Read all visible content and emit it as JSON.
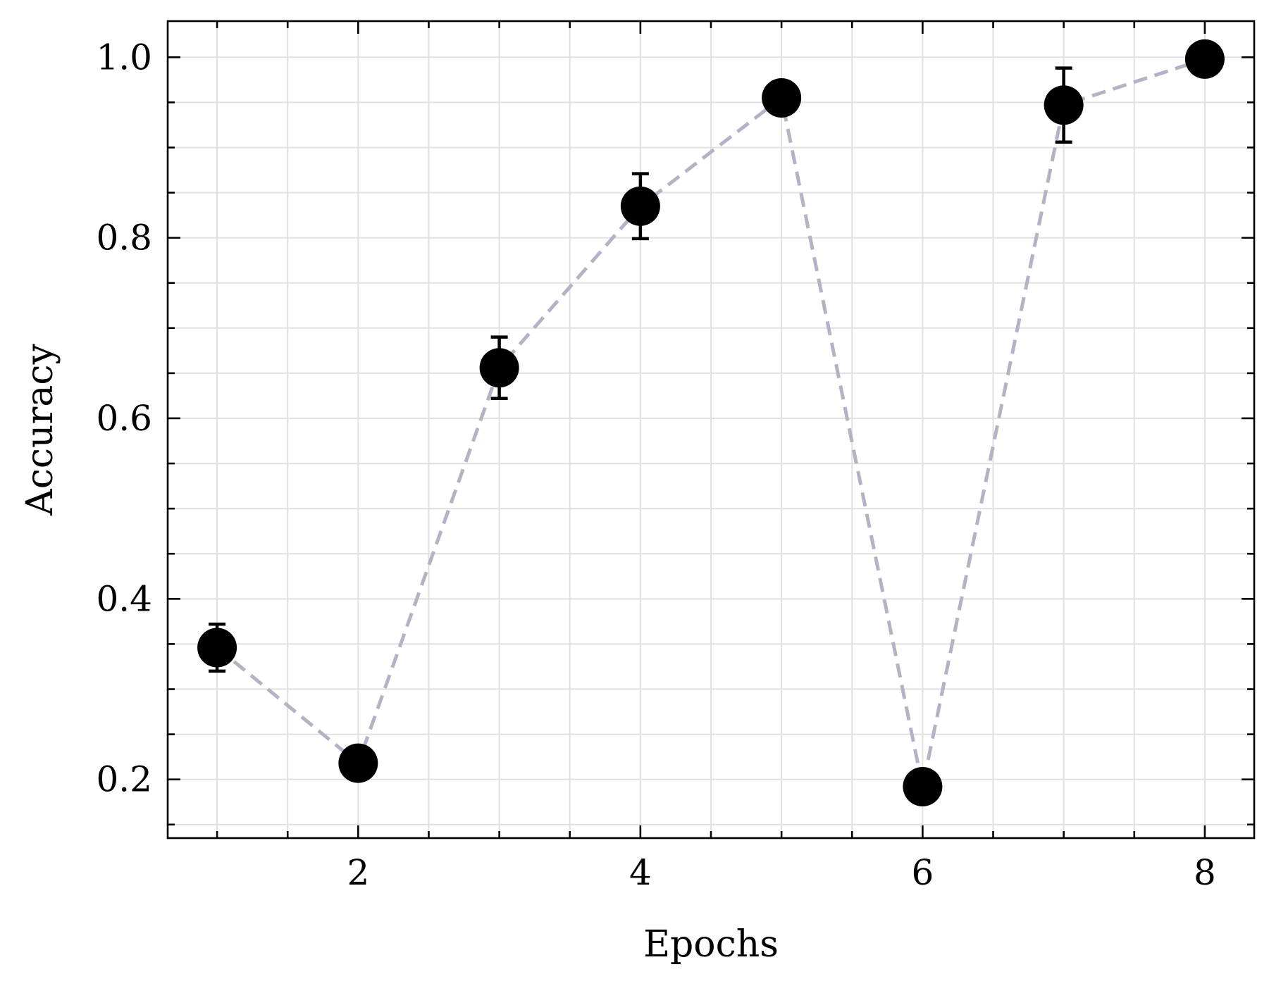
{
  "chart_data": {
    "type": "scatter",
    "title": "",
    "xlabel": "Epochs",
    "ylabel": "Accuracy",
    "xlim": [
      0.65,
      8.35
    ],
    "ylim": [
      0.135,
      1.04
    ],
    "xticks": [
      2,
      4,
      6,
      8
    ],
    "xtick_labels": [
      "2",
      "4",
      "6",
      "8"
    ],
    "xticks_minor": [
      1,
      1.5,
      2.5,
      3,
      3.5,
      4.5,
      5,
      5.5,
      6.5,
      7,
      7.5
    ],
    "yticks": [
      0.2,
      0.4,
      0.6,
      0.8,
      1.0
    ],
    "ytick_labels": [
      "0.2",
      "0.4",
      "0.6",
      "0.8",
      "1.0"
    ],
    "yticks_minor": [
      0.15,
      0.25,
      0.3,
      0.35,
      0.45,
      0.5,
      0.55,
      0.65,
      0.7,
      0.75,
      0.85,
      0.9,
      0.95
    ],
    "grid": true,
    "connector_style": "dashed",
    "series": [
      {
        "x": [
          1,
          2,
          3,
          4,
          5,
          6,
          7,
          8
        ],
        "y": [
          0.346,
          0.218,
          0.656,
          0.835,
          0.955,
          0.192,
          0.947,
          0.998
        ],
        "yerr": [
          0.026,
          0.017,
          0.034,
          0.036,
          0.012,
          0.017,
          0.041,
          0.008
        ]
      }
    ],
    "colors": {
      "marker": "#000000",
      "errorbar": "#000000",
      "connector": "#b4b3c6",
      "grid": "#e0e0e0",
      "frame": "#000000"
    }
  }
}
